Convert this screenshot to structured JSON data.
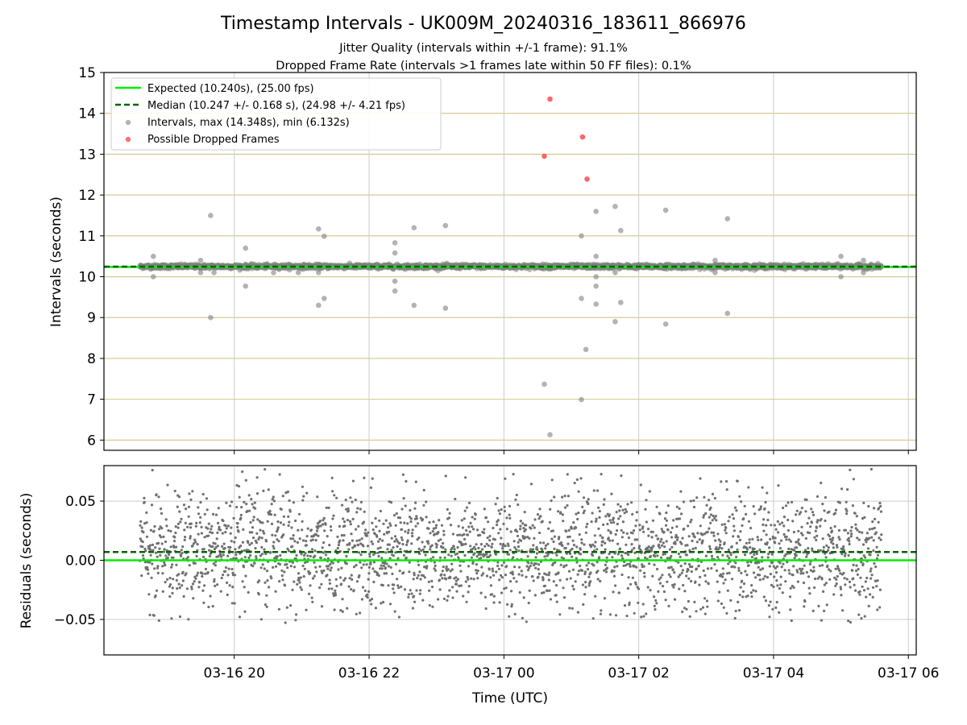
{
  "figure": {
    "title": "Timestamp Intervals - UK009M_20240316_183611_866976",
    "subtitle_1": "Jitter Quality (intervals within +/-1 frame): 91.1%",
    "subtitle_2": "Dropped Frame Rate (intervals >1 frames late within 50 FF files): 0.1%"
  },
  "colors": {
    "expected": "#00ee00",
    "median": "#006400",
    "intervals": "#808080",
    "dropped": "#ff3333",
    "grid_top": "#d4c48a",
    "grid": "#cccccc"
  },
  "chart_data": [
    {
      "type": "scatter",
      "panel": "intervals",
      "ylabel": "Intervals (seconds)",
      "ylim": [
        5.75,
        15.0
      ],
      "yticks": [
        "6",
        "7",
        "8",
        "9",
        "10",
        "11",
        "12",
        "13",
        "14",
        "15"
      ],
      "xlim": [
        "2024-03-16 18:04",
        "2024-03-17 06:07"
      ],
      "grid": true,
      "legend_position": "upper-left",
      "legend": [
        "Expected (10.240s), (25.00 fps)",
        "Median (10.247 +/- 0.168 s), (24.98 +/- 4.21 fps)",
        "Intervals, max (14.348s), min (6.132s)",
        "Possible Dropped Frames"
      ],
      "expected_line": 10.24,
      "median_line": 10.247,
      "band": {
        "x_range": [
          "2024-03-16 18:36",
          "2024-03-17 05:36"
        ],
        "center": 10.25,
        "spread": 0.05,
        "description_note": "dense band of intervals"
      },
      "outliers": [
        {
          "x": "2024-03-16 18:48",
          "y": 10.5
        },
        {
          "x": "2024-03-16 18:48",
          "y": 10.0
        },
        {
          "x": "2024-03-16 19:30",
          "y": 10.4
        },
        {
          "x": "2024-03-16 19:30",
          "y": 10.1
        },
        {
          "x": "2024-03-16 19:39",
          "y": 11.5
        },
        {
          "x": "2024-03-16 19:39",
          "y": 9.0
        },
        {
          "x": "2024-03-16 19:42",
          "y": 10.1
        },
        {
          "x": "2024-03-16 20:10",
          "y": 10.7
        },
        {
          "x": "2024-03-16 20:10",
          "y": 9.77
        },
        {
          "x": "2024-03-16 20:35",
          "y": 10.1
        },
        {
          "x": "2024-03-16 20:57",
          "y": 10.1
        },
        {
          "x": "2024-03-16 21:15",
          "y": 11.17
        },
        {
          "x": "2024-03-16 21:15",
          "y": 10.1
        },
        {
          "x": "2024-03-16 21:15",
          "y": 9.3
        },
        {
          "x": "2024-03-16 21:20",
          "y": 10.99
        },
        {
          "x": "2024-03-16 21:20",
          "y": 9.47
        },
        {
          "x": "2024-03-16 22:23",
          "y": 10.83
        },
        {
          "x": "2024-03-16 22:23",
          "y": 10.58
        },
        {
          "x": "2024-03-16 22:23",
          "y": 9.89
        },
        {
          "x": "2024-03-16 22:23",
          "y": 9.65
        },
        {
          "x": "2024-03-16 22:40",
          "y": 11.2
        },
        {
          "x": "2024-03-16 22:40",
          "y": 9.3
        },
        {
          "x": "2024-03-16 23:08",
          "y": 11.25
        },
        {
          "x": "2024-03-16 23:08",
          "y": 9.23
        },
        {
          "x": "2024-03-17 00:36",
          "y": 7.37
        },
        {
          "x": "2024-03-17 00:41",
          "y": 6.13
        },
        {
          "x": "2024-03-17 01:09",
          "y": 11.0
        },
        {
          "x": "2024-03-17 01:09",
          "y": 9.47
        },
        {
          "x": "2024-03-17 01:09",
          "y": 6.99
        },
        {
          "x": "2024-03-17 01:13",
          "y": 8.22
        },
        {
          "x": "2024-03-17 01:22",
          "y": 11.6
        },
        {
          "x": "2024-03-17 01:22",
          "y": 10.5
        },
        {
          "x": "2024-03-17 01:22",
          "y": 10.0
        },
        {
          "x": "2024-03-17 01:22",
          "y": 9.77
        },
        {
          "x": "2024-03-17 01:22",
          "y": 9.33
        },
        {
          "x": "2024-03-17 01:39",
          "y": 11.72
        },
        {
          "x": "2024-03-17 01:39",
          "y": 10.1
        },
        {
          "x": "2024-03-17 01:39",
          "y": 8.9
        },
        {
          "x": "2024-03-17 01:44",
          "y": 11.13
        },
        {
          "x": "2024-03-17 01:44",
          "y": 9.37
        },
        {
          "x": "2024-03-17 02:24",
          "y": 11.63
        },
        {
          "x": "2024-03-17 02:24",
          "y": 8.84
        },
        {
          "x": "2024-03-17 03:08",
          "y": 10.4
        },
        {
          "x": "2024-03-17 03:08",
          "y": 10.1
        },
        {
          "x": "2024-03-17 03:19",
          "y": 11.42
        },
        {
          "x": "2024-03-17 03:19",
          "y": 9.1
        },
        {
          "x": "2024-03-17 05:00",
          "y": 10.5
        },
        {
          "x": "2024-03-17 05:00",
          "y": 10.0
        },
        {
          "x": "2024-03-17 05:20",
          "y": 10.4
        },
        {
          "x": "2024-03-17 05:20",
          "y": 10.1
        }
      ],
      "dropped_frames": [
        {
          "x": "2024-03-17 00:36",
          "y": 12.95
        },
        {
          "x": "2024-03-17 00:41",
          "y": 14.35
        },
        {
          "x": "2024-03-17 01:10",
          "y": 13.42
        },
        {
          "x": "2024-03-17 01:14",
          "y": 12.39
        }
      ]
    },
    {
      "type": "scatter",
      "panel": "residuals",
      "xlabel": "Time (UTC)",
      "ylabel": "Residuals (seconds)",
      "ylim": [
        -0.08,
        0.08
      ],
      "yticks": [
        "0.05",
        "0.00",
        "−0.05"
      ],
      "xlim": [
        "2024-03-16 18:04",
        "2024-03-17 06:07"
      ],
      "xticks": [
        "03-16 20",
        "03-16 22",
        "03-17 00",
        "03-17 02",
        "03-17 04",
        "03-17 06"
      ],
      "grid": true,
      "expected_line": 0.0,
      "median_line": 0.007,
      "residual_range": [
        -0.053,
        0.077
      ],
      "residual_spread": 0.025,
      "x_range": [
        "2024-03-16 18:36",
        "2024-03-17 05:36"
      ]
    }
  ]
}
